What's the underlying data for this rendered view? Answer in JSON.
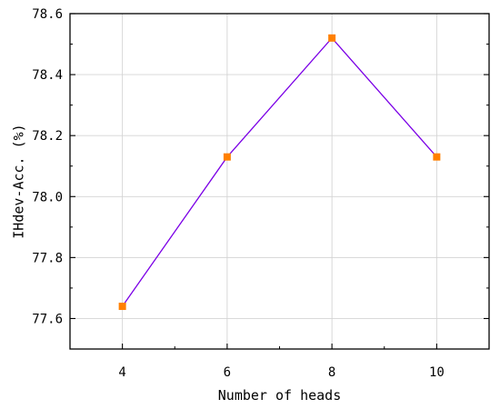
{
  "chart_data": {
    "type": "line",
    "title": "",
    "xlabel": "Number of heads",
    "ylabel": "IHdev-Acc. (%)",
    "xlim": [
      3,
      11
    ],
    "ylim": [
      77.5,
      78.6
    ],
    "x_ticks": [
      4,
      6,
      8,
      10
    ],
    "x_tick_labels": [
      "4",
      "6",
      "8",
      "10"
    ],
    "y_ticks": [
      77.6,
      77.8,
      78.0,
      78.2,
      78.4,
      78.6
    ],
    "y_tick_labels": [
      "77.6",
      "77.8",
      "78.0",
      "78.2",
      "78.4",
      "78.6"
    ],
    "grid": true,
    "series": [
      {
        "x": [
          4,
          6,
          8,
          10
        ],
        "values": [
          77.64,
          78.13,
          78.52,
          78.13
        ],
        "line_color": "#7b00e6",
        "marker": "square",
        "marker_color": "#ff8000"
      }
    ]
  }
}
